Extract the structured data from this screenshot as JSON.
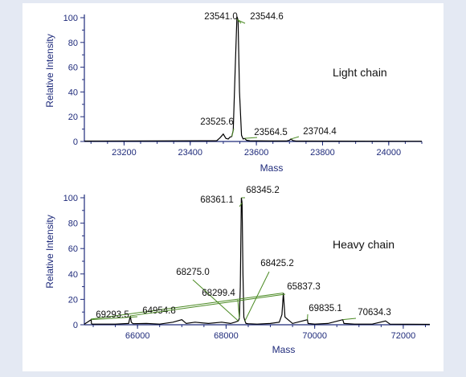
{
  "chart_data": [
    {
      "id": "light",
      "type": "line",
      "annotation": "Light chain",
      "xlabel": "Mass",
      "ylabel": "Relative Intensity",
      "xlim": [
        23080,
        24100
      ],
      "ylim": [
        0,
        100
      ],
      "xticks": [
        23200,
        23400,
        23600,
        23800,
        24000
      ],
      "yticks": [
        0,
        20,
        40,
        60,
        80,
        100
      ],
      "series": [
        {
          "x": [
            23080,
            23480,
            23490,
            23500,
            23508,
            23515,
            23520,
            23525.6,
            23530,
            23536,
            23541.0,
            23542.5,
            23544.6,
            23549,
            23555,
            23560,
            23564.5,
            23570,
            23580,
            23640,
            23690,
            23700,
            23704.4,
            23710,
            23720,
            24100
          ],
          "y": [
            0.3,
            0.6,
            3,
            6,
            2.5,
            2,
            3.5,
            4,
            9,
            60,
            99,
            100,
            98,
            40,
            5,
            2,
            2.5,
            1,
            0.6,
            0.4,
            0.4,
            1,
            2,
            0.8,
            0.3,
            0.2
          ]
        }
      ],
      "peaks": [
        {
          "label": "23541.0",
          "x": 23541.0,
          "y": 99
        },
        {
          "label": "23544.6",
          "x": 23544.6,
          "y": 98
        },
        {
          "label": "23525.6",
          "x": 23525.6,
          "y": 4
        },
        {
          "label": "23564.5",
          "x": 23564.5,
          "y": 2.5
        },
        {
          "label": "23704.4",
          "x": 23704.4,
          "y": 2
        }
      ]
    },
    {
      "id": "heavy",
      "type": "line",
      "annotation": "Heavy chain",
      "xlabel": "Mass",
      "ylabel": "Relative Intensity",
      "xlim": [
        64800,
        72600
      ],
      "ylim": [
        0,
        100
      ],
      "xticks": [
        66000,
        68000,
        70000,
        72000
      ],
      "yticks": [
        0,
        20,
        40,
        60,
        80,
        100
      ],
      "series": [
        {
          "x": [
            64800,
            64954.8,
            64960,
            64975,
            65500,
            65800,
            65837.3,
            65860,
            65900,
            66200,
            66500,
            66800,
            67000,
            67100,
            67300,
            67600,
            67900,
            68100,
            68200,
            68275.0,
            68299.4,
            68320,
            68345.2,
            68361.1,
            68380,
            68400,
            68425.2,
            68450,
            68500,
            68700,
            69000,
            69200,
            69260,
            69293.5,
            69330,
            69500,
            69835.1,
            69850,
            70000,
            70300,
            70634.3,
            70660,
            70900,
            71300,
            71600,
            71700,
            72600
          ],
          "y": [
            0.5,
            4,
            1,
            0.5,
            0.5,
            1,
            7,
            2,
            0.8,
            1,
            0.5,
            2,
            4,
            1,
            2,
            1,
            2,
            1,
            2,
            3,
            5,
            30,
            100,
            96,
            40,
            6,
            3,
            1,
            0.8,
            0.5,
            1,
            2,
            8,
            25,
            6,
            1,
            4,
            1,
            0.5,
            1,
            4,
            1,
            0.5,
            0.5,
            3,
            0.5,
            0.3
          ]
        }
      ],
      "peaks": [
        {
          "label": "68361.1",
          "x": 68361.1,
          "y": 96
        },
        {
          "label": "68345.2",
          "x": 68345.2,
          "y": 100
        },
        {
          "label": "68425.2",
          "x": 68425.2,
          "y": 3
        },
        {
          "label": "68275.0",
          "x": 68275.0,
          "y": 3
        },
        {
          "label": "68299.4",
          "x": 68299.4,
          "y": 5
        },
        {
          "label": "69293.5",
          "x": 69293.5,
          "y": 25
        },
        {
          "label": "64954.8",
          "x": 64954.8,
          "y": 4
        },
        {
          "label": "65837.3",
          "x": 65837.3,
          "y": 7
        },
        {
          "label": "69835.1",
          "x": 69835.1,
          "y": 4
        },
        {
          "label": "70634.3",
          "x": 70634.3,
          "y": 4
        }
      ]
    }
  ]
}
